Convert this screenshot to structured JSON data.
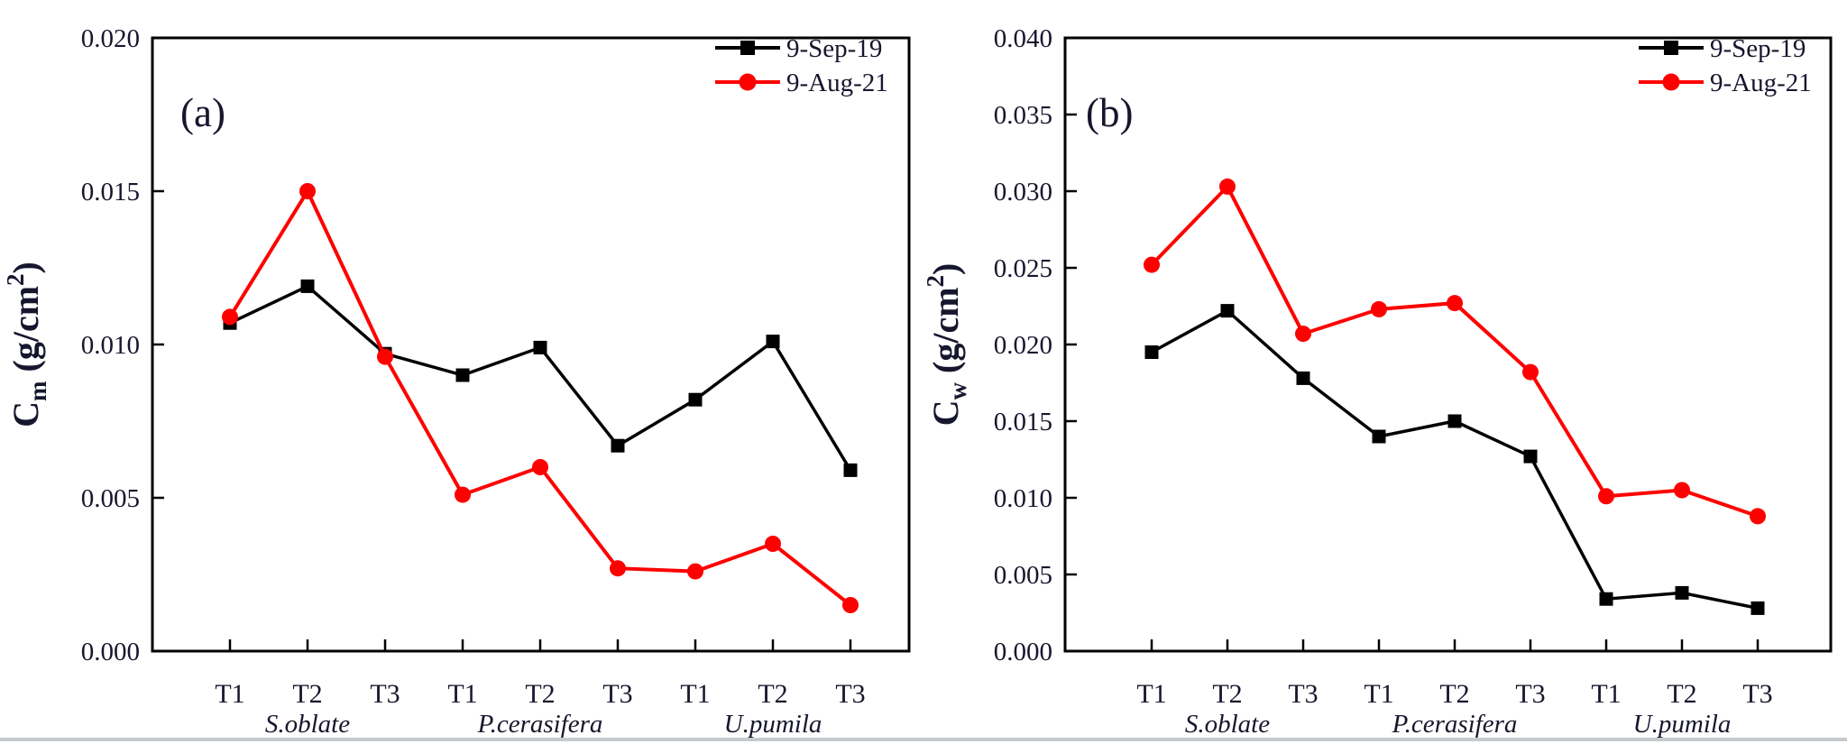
{
  "style": {
    "background": "#ffffff",
    "text_color": "#16162e",
    "axis_color": "#000000",
    "series_black": "#000000",
    "series_red": "#fe0000"
  },
  "legend": {
    "items": [
      {
        "label": "9-Sep-19",
        "color": "#000000",
        "marker": "square"
      },
      {
        "label": "9-Aug-21",
        "color": "#fe0000",
        "marker": "circle"
      }
    ]
  },
  "chart_data": [
    {
      "id": "a",
      "type": "line",
      "panel_label": "(a)",
      "ylabel": {
        "base": "C",
        "sub": "m",
        "unit": " (g/cm",
        "sup": "2",
        "close": ")"
      },
      "ylabel_plain": "Cm (g/cm2)",
      "xlabel": "",
      "ylim": [
        0,
        0.02
      ],
      "grid": false,
      "legend_position": "top-right-inside",
      "ytick_values": [
        0.0,
        0.005,
        0.01,
        0.015,
        0.02
      ],
      "ytick_labels": [
        "0.000",
        "0.005",
        "0.010",
        "0.015",
        "0.020"
      ],
      "categories": [
        "T1",
        "T2",
        "T3",
        "T1",
        "T2",
        "T3",
        "T1",
        "T2",
        "T3"
      ],
      "groups": [
        {
          "label": "S.oblate",
          "center_index": 1
        },
        {
          "label": "P.cerasifera",
          "center_index": 4
        },
        {
          "label": "U.pumila",
          "center_index": 7
        }
      ],
      "series": [
        {
          "name": "9-Sep-19",
          "color": "#000000",
          "marker": "square",
          "values": [
            0.0107,
            0.0119,
            0.0097,
            0.009,
            0.0099,
            0.0067,
            0.0082,
            0.0101,
            0.0059
          ]
        },
        {
          "name": "9-Aug-21",
          "color": "#fe0000",
          "marker": "circle",
          "values": [
            0.0109,
            0.015,
            0.0096,
            0.0051,
            0.006,
            0.0027,
            0.0026,
            0.0035,
            0.0015
          ]
        }
      ]
    },
    {
      "id": "b",
      "type": "line",
      "panel_label": "(b)",
      "ylabel": {
        "base": "C",
        "sub": "w",
        "unit": " (g/cm",
        "sup": "2",
        "close": ")"
      },
      "ylabel_plain": "Cw (g/cm2)",
      "xlabel": "",
      "ylim": [
        0,
        0.04
      ],
      "grid": false,
      "legend_position": "top-right-inside",
      "ytick_values": [
        0.0,
        0.005,
        0.01,
        0.015,
        0.02,
        0.025,
        0.03,
        0.035,
        0.04
      ],
      "ytick_labels": [
        "0.000",
        "0.005",
        "0.010",
        "0.015",
        "0.020",
        "0.025",
        "0.030",
        "0.035",
        "0.040"
      ],
      "categories": [
        "T1",
        "T2",
        "T3",
        "T1",
        "T2",
        "T3",
        "T1",
        "T2",
        "T3"
      ],
      "groups": [
        {
          "label": "S.oblate",
          "center_index": 1
        },
        {
          "label": "P.cerasifera",
          "center_index": 4
        },
        {
          "label": "U.pumila",
          "center_index": 7
        }
      ],
      "series": [
        {
          "name": "9-Sep-19",
          "color": "#000000",
          "marker": "square",
          "values": [
            0.0195,
            0.0222,
            0.0178,
            0.014,
            0.015,
            0.0127,
            0.0034,
            0.0038,
            0.0028
          ]
        },
        {
          "name": "9-Aug-21",
          "color": "#fe0000",
          "marker": "circle",
          "values": [
            0.0252,
            0.0303,
            0.0207,
            0.0223,
            0.0227,
            0.0182,
            0.0101,
            0.0105,
            0.0088
          ]
        }
      ]
    }
  ]
}
